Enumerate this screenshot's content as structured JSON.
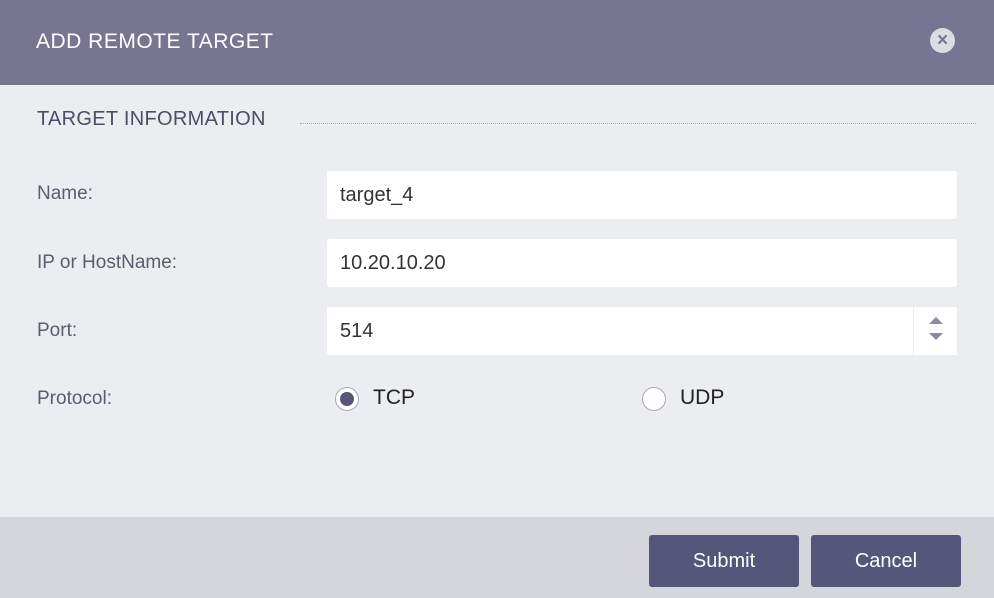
{
  "dialog": {
    "title": "ADD REMOTE TARGET",
    "close_icon": "close-circle-icon"
  },
  "section": {
    "title": "TARGET INFORMATION"
  },
  "fields": {
    "name": {
      "label": "Name:",
      "value": "target_4"
    },
    "host": {
      "label": "IP or HostName:",
      "value": "10.20.10.20"
    },
    "port": {
      "label": "Port:",
      "value": "514"
    },
    "protocol": {
      "label": "Protocol:",
      "options": [
        "TCP",
        "UDP"
      ],
      "selected": "TCP"
    }
  },
  "buttons": {
    "submit": "Submit",
    "cancel": "Cancel"
  },
  "colors": {
    "header": "#767592",
    "accent": "#55567a"
  }
}
